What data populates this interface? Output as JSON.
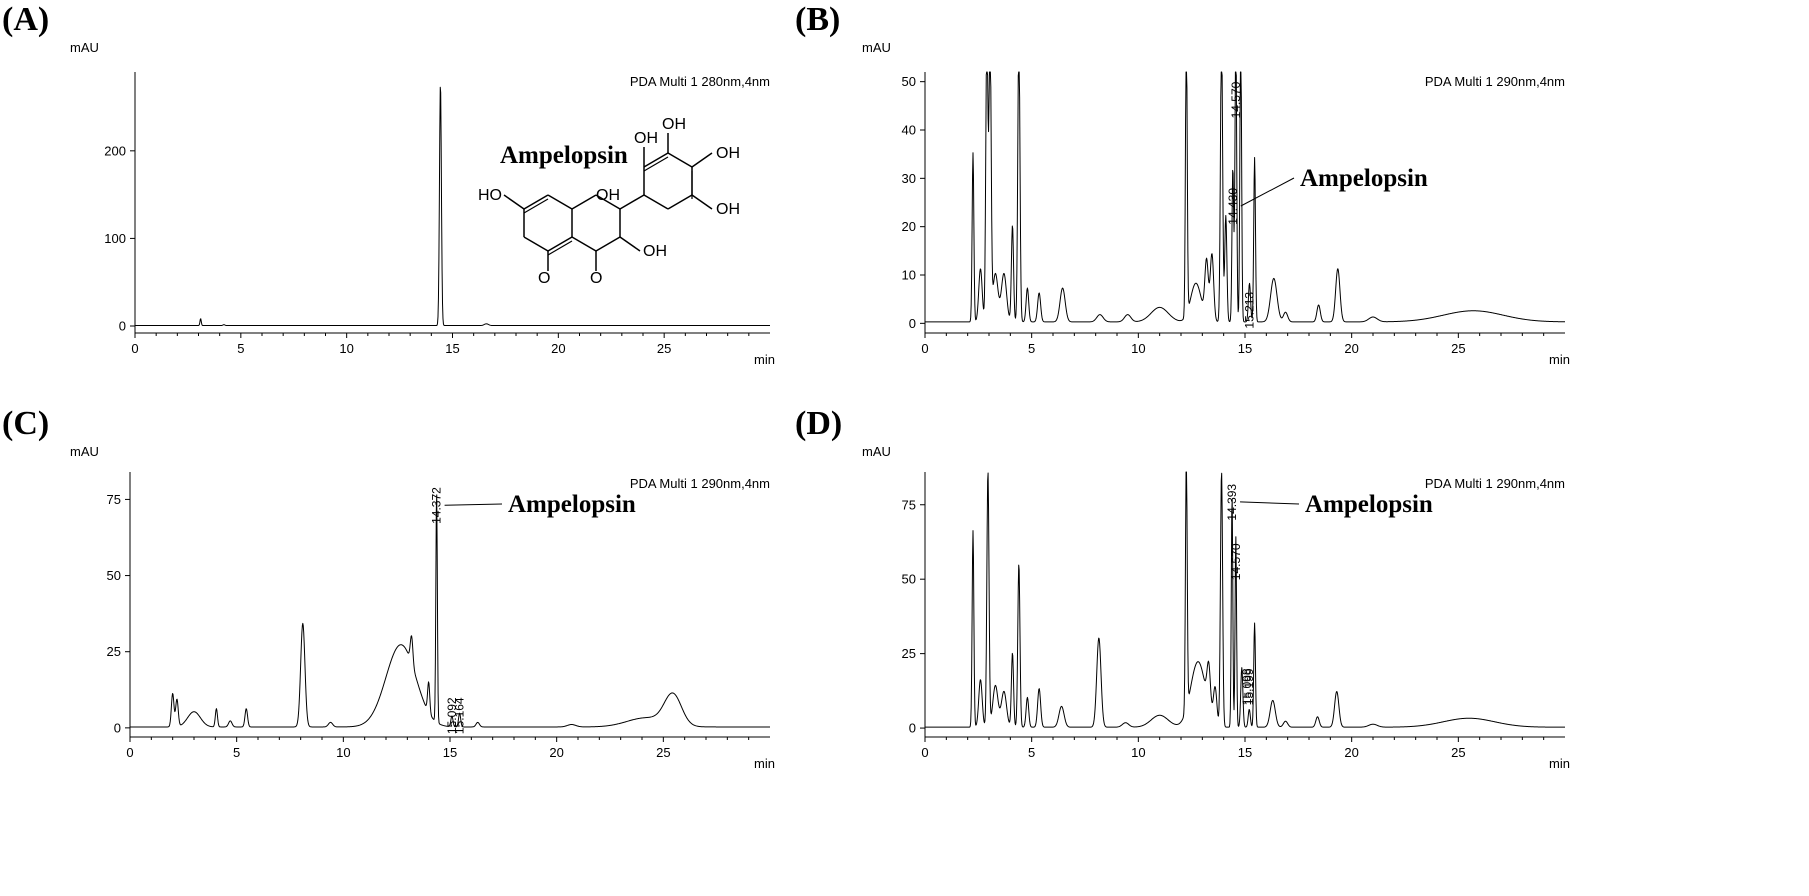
{
  "chart_data": [
    {
      "panel": "(A)",
      "type": "line",
      "ylabel": "mAU",
      "xlabel": "min",
      "detector": "PDA Multi 1 280nm,4nm",
      "xlim": [
        0,
        30
      ],
      "ylim": [
        -8,
        290
      ],
      "xticks": [
        0,
        5,
        10,
        15,
        20,
        25
      ],
      "yticks": [
        0,
        100,
        200
      ],
      "compound_label": "Ampelopsin",
      "baseline": 0.5,
      "peaks": [
        {
          "x": 3.1,
          "height": 8,
          "width": 0.03
        },
        {
          "x": 4.2,
          "height": 1,
          "width": 0.05
        },
        {
          "x": 14.43,
          "height": 277,
          "width": 0.045
        },
        {
          "x": 16.6,
          "height": 2,
          "width": 0.1
        }
      ],
      "peak_labels": [],
      "structure_atoms": [
        "OH",
        "OH",
        "OH",
        "OH",
        "HO",
        "O",
        "OH",
        "OH",
        "O"
      ]
    },
    {
      "panel": "(B)",
      "type": "line",
      "ylabel": "mAU",
      "xlabel": "min",
      "detector": "PDA Multi 1 290nm,4nm",
      "xlim": [
        0,
        30
      ],
      "ylim": [
        -2,
        52
      ],
      "xticks": [
        0,
        5,
        10,
        15,
        20,
        25
      ],
      "yticks": [
        0,
        10,
        20,
        30,
        40,
        50
      ],
      "compound_label": "Ampelopsin",
      "annotation_peak": 14.43,
      "baseline": 0.3,
      "peaks": [
        {
          "x": 2.25,
          "height": 35,
          "width": 0.04
        },
        {
          "x": 2.6,
          "height": 11,
          "width": 0.08
        },
        {
          "x": 2.9,
          "height": 60,
          "width": 0.05
        },
        {
          "x": 3.05,
          "height": 60,
          "width": 0.05
        },
        {
          "x": 3.3,
          "height": 10,
          "width": 0.12
        },
        {
          "x": 3.7,
          "height": 10,
          "width": 0.12
        },
        {
          "x": 4.1,
          "height": 20,
          "width": 0.05
        },
        {
          "x": 4.4,
          "height": 60,
          "width": 0.05
        },
        {
          "x": 4.8,
          "height": 7,
          "width": 0.06
        },
        {
          "x": 5.35,
          "height": 6,
          "width": 0.07
        },
        {
          "x": 6.45,
          "height": 7,
          "width": 0.12
        },
        {
          "x": 8.2,
          "height": 1.5,
          "width": 0.15
        },
        {
          "x": 9.5,
          "height": 1.5,
          "width": 0.15
        },
        {
          "x": 11.0,
          "height": 3,
          "width": 0.4
        },
        {
          "x": 12.25,
          "height": 60,
          "width": 0.04
        },
        {
          "x": 12.7,
          "height": 8,
          "width": 0.25
        },
        {
          "x": 13.2,
          "height": 12,
          "width": 0.08
        },
        {
          "x": 13.45,
          "height": 14,
          "width": 0.08
        },
        {
          "x": 13.9,
          "height": 60,
          "width": 0.05
        },
        {
          "x": 14.1,
          "height": 22,
          "width": 0.05
        },
        {
          "x": 14.43,
          "height": 32,
          "width": 0.04
        },
        {
          "x": 14.57,
          "height": 60,
          "width": 0.04
        },
        {
          "x": 14.8,
          "height": 60,
          "width": 0.04
        },
        {
          "x": 15.21,
          "height": 8,
          "width": 0.05
        },
        {
          "x": 15.45,
          "height": 34,
          "width": 0.04
        },
        {
          "x": 16.35,
          "height": 9,
          "width": 0.15
        },
        {
          "x": 16.9,
          "height": 2,
          "width": 0.1
        },
        {
          "x": 18.45,
          "height": 3.5,
          "width": 0.08
        },
        {
          "x": 19.35,
          "height": 11,
          "width": 0.1
        },
        {
          "x": 21.0,
          "height": 1,
          "width": 0.2
        },
        {
          "x": 25.7,
          "height": 2.3,
          "width": 1.4
        }
      ],
      "peak_labels": [
        {
          "x": 14.57,
          "y": 50,
          "text": "14.570"
        },
        {
          "x": 14.43,
          "y": 28,
          "text": "14.430"
        },
        {
          "x": 15.21,
          "y": 6.5,
          "text": "15.213"
        }
      ]
    },
    {
      "panel": "(C)",
      "type": "line",
      "ylabel": "mAU",
      "xlabel": "min",
      "detector": "PDA Multi 1 290nm,4nm",
      "xlim": [
        0,
        30
      ],
      "ylim": [
        -3,
        84
      ],
      "xticks": [
        0,
        5,
        10,
        15,
        20,
        25
      ],
      "yticks": [
        0,
        25,
        50,
        75
      ],
      "compound_label": "Ampelopsin",
      "annotation_peak": 14.372,
      "baseline": 0.3,
      "peaks": [
        {
          "x": 2.0,
          "height": 11,
          "width": 0.06
        },
        {
          "x": 2.2,
          "height": 9,
          "width": 0.06
        },
        {
          "x": 3.0,
          "height": 5,
          "width": 0.3
        },
        {
          "x": 4.05,
          "height": 6,
          "width": 0.05
        },
        {
          "x": 4.7,
          "height": 2,
          "width": 0.08
        },
        {
          "x": 5.45,
          "height": 6,
          "width": 0.06
        },
        {
          "x": 8.1,
          "height": 34,
          "width": 0.1
        },
        {
          "x": 9.4,
          "height": 1.5,
          "width": 0.1
        },
        {
          "x": 12.7,
          "height": 27,
          "width": 0.7
        },
        {
          "x": 13.2,
          "height": 9,
          "width": 0.06
        },
        {
          "x": 14.0,
          "height": 10,
          "width": 0.05
        },
        {
          "x": 14.372,
          "height": 76,
          "width": 0.035
        },
        {
          "x": 15.09,
          "height": 3.5,
          "width": 0.05
        },
        {
          "x": 15.45,
          "height": 4.5,
          "width": 0.05
        },
        {
          "x": 16.3,
          "height": 1.5,
          "width": 0.08
        },
        {
          "x": 20.7,
          "height": 0.8,
          "width": 0.2
        },
        {
          "x": 24.2,
          "height": 3,
          "width": 0.9
        },
        {
          "x": 25.45,
          "height": 10,
          "width": 0.4
        }
      ],
      "peak_labels": [
        {
          "x": 14.372,
          "y": 79,
          "text": "14.372"
        },
        {
          "x": 15.092,
          "y": 10,
          "text": "15.092"
        },
        {
          "x": 15.45,
          "y": 10,
          "text": "15.164"
        }
      ]
    },
    {
      "panel": "(D)",
      "type": "line",
      "ylabel": "mAU",
      "xlabel": "min",
      "detector": "PDA Multi 1 290nm,4nm",
      "xlim": [
        0,
        30
      ],
      "ylim": [
        -3,
        86
      ],
      "xticks": [
        0,
        5,
        10,
        15,
        20,
        25
      ],
      "yticks": [
        0,
        25,
        50,
        75
      ],
      "compound_label": "Ampelopsin",
      "annotation_peak": 14.393,
      "baseline": 0.3,
      "peaks": [
        {
          "x": 2.25,
          "height": 66,
          "width": 0.04
        },
        {
          "x": 2.6,
          "height": 16,
          "width": 0.08
        },
        {
          "x": 2.95,
          "height": 86,
          "width": 0.05
        },
        {
          "x": 3.3,
          "height": 14,
          "width": 0.12
        },
        {
          "x": 3.7,
          "height": 12,
          "width": 0.12
        },
        {
          "x": 4.1,
          "height": 25,
          "width": 0.05
        },
        {
          "x": 4.4,
          "height": 55,
          "width": 0.05
        },
        {
          "x": 4.8,
          "height": 10,
          "width": 0.06
        },
        {
          "x": 5.35,
          "height": 13,
          "width": 0.07
        },
        {
          "x": 6.4,
          "height": 7,
          "width": 0.12
        },
        {
          "x": 8.15,
          "height": 30,
          "width": 0.1
        },
        {
          "x": 9.4,
          "height": 1.5,
          "width": 0.15
        },
        {
          "x": 11.0,
          "height": 4,
          "width": 0.4
        },
        {
          "x": 12.25,
          "height": 86,
          "width": 0.04
        },
        {
          "x": 12.8,
          "height": 22,
          "width": 0.35
        },
        {
          "x": 13.3,
          "height": 14,
          "width": 0.08
        },
        {
          "x": 13.6,
          "height": 12,
          "width": 0.08
        },
        {
          "x": 13.9,
          "height": 86,
          "width": 0.05
        },
        {
          "x": 14.393,
          "height": 78,
          "width": 0.035
        },
        {
          "x": 14.57,
          "height": 64,
          "width": 0.035
        },
        {
          "x": 14.85,
          "height": 20,
          "width": 0.05
        },
        {
          "x": 15.2,
          "height": 6,
          "width": 0.05
        },
        {
          "x": 15.45,
          "height": 35,
          "width": 0.04
        },
        {
          "x": 16.3,
          "height": 9,
          "width": 0.12
        },
        {
          "x": 16.9,
          "height": 2,
          "width": 0.1
        },
        {
          "x": 18.4,
          "height": 3.5,
          "width": 0.08
        },
        {
          "x": 19.3,
          "height": 12,
          "width": 0.1
        },
        {
          "x": 21.0,
          "height": 1,
          "width": 0.2
        },
        {
          "x": 25.5,
          "height": 3,
          "width": 1.2
        }
      ],
      "peak_labels": [
        {
          "x": 14.393,
          "y": 82,
          "text": "14.393"
        },
        {
          "x": 14.57,
          "y": 62,
          "text": "14.570"
        },
        {
          "x": 15.098,
          "y": 20,
          "text": "15.098"
        },
        {
          "x": 15.199,
          "y": 20,
          "text": "15.199"
        }
      ]
    }
  ]
}
